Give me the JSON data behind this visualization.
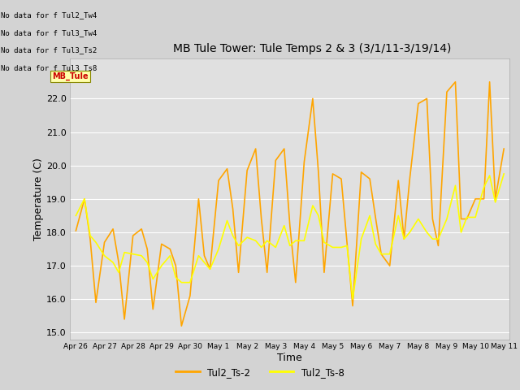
{
  "title": "MB Tule Tower: Tule Temps 2 & 3 (3/1/11-3/19/14)",
  "xlabel": "Time",
  "ylabel": "Temperature (C)",
  "line1_color": "#FFA500",
  "line2_color": "#FFFF00",
  "line1_label": "Tul2_Ts-2",
  "line2_label": "Tul2_Ts-8",
  "no_data_lines": [
    "No data for f Tul2_Tw4",
    "No data for f Tul3_Tw4",
    "No data for f Tul3_Ts2",
    "No data for f Tul3_Ts8"
  ],
  "xtick_labels": [
    "Apr 26",
    "Apr 27",
    "Apr 28",
    "Apr 29",
    "Apr 30",
    "May 1",
    "May 2",
    "May 3",
    "May 4",
    "May 5",
    "May 6",
    "May 7",
    "May 8",
    "May 9",
    "May 10",
    "May 11"
  ],
  "ts2_x": [
    0,
    0.3,
    0.5,
    0.7,
    1.0,
    1.3,
    1.5,
    1.7,
    2.0,
    2.3,
    2.5,
    2.7,
    3.0,
    3.3,
    3.5,
    3.7,
    4.0,
    4.3,
    4.5,
    4.7,
    5.0,
    5.3,
    5.5,
    5.7,
    6.0,
    6.3,
    6.5,
    6.7,
    7.0,
    7.3,
    7.5,
    7.7,
    8.0,
    8.3,
    8.5,
    8.7,
    9.0,
    9.3,
    9.5,
    9.7,
    10.0,
    10.3,
    10.5,
    10.7,
    11.0,
    11.3,
    11.5,
    11.7,
    12.0,
    12.3,
    12.5,
    12.7,
    13.0,
    13.3,
    13.5,
    13.7,
    14.0,
    14.3,
    14.5,
    14.7,
    15.0
  ],
  "ts2_y": [
    18.05,
    19.0,
    17.8,
    15.9,
    17.7,
    18.1,
    17.1,
    15.4,
    17.9,
    18.1,
    17.5,
    15.7,
    17.65,
    17.5,
    17.0,
    15.2,
    16.1,
    19.0,
    17.3,
    16.9,
    19.55,
    19.9,
    18.7,
    16.8,
    19.85,
    20.5,
    18.4,
    16.8,
    20.15,
    20.5,
    18.2,
    16.5,
    20.1,
    22.0,
    19.8,
    16.8,
    19.75,
    19.6,
    17.7,
    15.8,
    19.8,
    19.6,
    18.45,
    17.35,
    17.0,
    19.55,
    17.8,
    19.6,
    21.85,
    22.0,
    18.4,
    17.6,
    22.2,
    22.5,
    18.4,
    18.4,
    19.0,
    19.0,
    22.5,
    19.0,
    20.5
  ],
  "ts8_x": [
    0,
    0.3,
    0.5,
    0.7,
    1.0,
    1.3,
    1.5,
    1.7,
    2.0,
    2.3,
    2.5,
    2.7,
    3.0,
    3.3,
    3.5,
    3.7,
    4.0,
    4.3,
    4.5,
    4.7,
    5.0,
    5.3,
    5.5,
    5.7,
    6.0,
    6.3,
    6.5,
    6.7,
    7.0,
    7.3,
    7.5,
    7.7,
    8.0,
    8.3,
    8.5,
    8.7,
    9.0,
    9.3,
    9.5,
    9.7,
    10.0,
    10.3,
    10.5,
    10.7,
    11.0,
    11.3,
    11.5,
    11.7,
    12.0,
    12.3,
    12.5,
    12.7,
    13.0,
    13.3,
    13.5,
    13.7,
    14.0,
    14.3,
    14.5,
    14.7,
    15.0
  ],
  "ts8_y": [
    18.5,
    19.0,
    17.9,
    17.7,
    17.3,
    17.1,
    16.8,
    17.4,
    17.35,
    17.3,
    17.1,
    16.6,
    17.0,
    17.3,
    16.65,
    16.5,
    16.5,
    17.3,
    17.1,
    16.9,
    17.5,
    18.35,
    17.9,
    17.6,
    17.85,
    17.75,
    17.55,
    17.75,
    17.55,
    18.2,
    17.6,
    17.75,
    17.75,
    18.8,
    18.5,
    17.7,
    17.55,
    17.55,
    17.6,
    16.0,
    17.8,
    18.5,
    17.65,
    17.35,
    17.35,
    18.5,
    17.8,
    18.0,
    18.4,
    18.0,
    17.8,
    17.8,
    18.4,
    19.4,
    18.0,
    18.45,
    18.45,
    19.35,
    19.7,
    18.9,
    19.75
  ]
}
